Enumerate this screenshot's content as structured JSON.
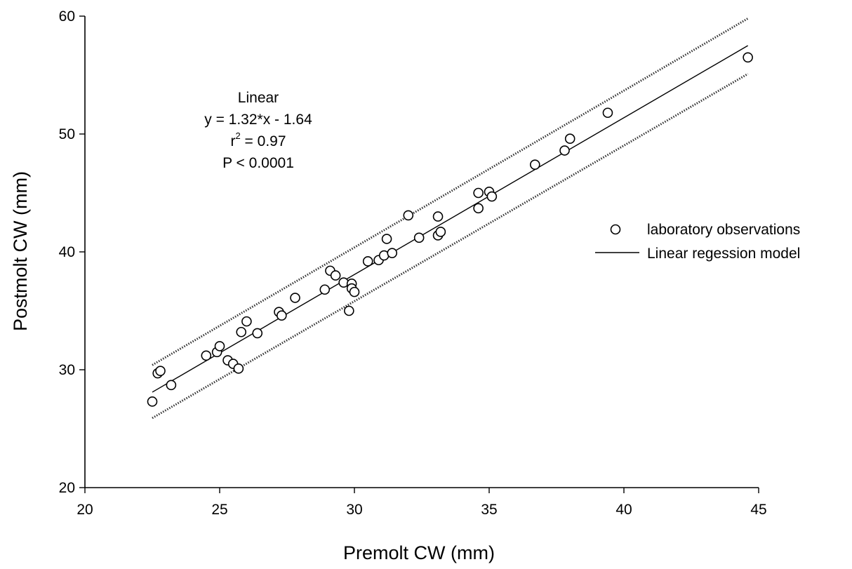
{
  "chart_data": {
    "type": "scatter",
    "xlabel": "Premolt CW (mm)",
    "ylabel": "Postmolt CW (mm)",
    "xlim": [
      20,
      45
    ],
    "ylim": [
      20,
      60
    ],
    "xticks": [
      "20",
      "25",
      "30",
      "35",
      "40",
      "45"
    ],
    "yticks": [
      "20",
      "30",
      "40",
      "50",
      "60"
    ],
    "grid": false,
    "legend_position": "right",
    "annotation": {
      "line1": "Linear",
      "line2": "y = 1.32*x - 1.64",
      "line3_base": "r",
      "line3_sup": "2",
      "line3_rest": " = 0.97",
      "line4": "P < 0.0001"
    },
    "series": [
      {
        "name": "laboratory observations",
        "kind": "scatter",
        "points": [
          [
            22.5,
            27.3
          ],
          [
            22.7,
            29.7
          ],
          [
            22.8,
            29.9
          ],
          [
            23.2,
            28.7
          ],
          [
            24.5,
            31.2
          ],
          [
            24.9,
            31.5
          ],
          [
            25.0,
            32.0
          ],
          [
            25.3,
            30.8
          ],
          [
            25.5,
            30.5
          ],
          [
            25.7,
            30.1
          ],
          [
            25.8,
            33.2
          ],
          [
            26.0,
            34.1
          ],
          [
            26.4,
            33.1
          ],
          [
            27.2,
            34.9
          ],
          [
            27.3,
            34.6
          ],
          [
            27.8,
            36.1
          ],
          [
            28.9,
            36.8
          ],
          [
            29.1,
            38.4
          ],
          [
            29.3,
            38.0
          ],
          [
            29.6,
            37.4
          ],
          [
            29.8,
            35.0
          ],
          [
            29.9,
            37.3
          ],
          [
            29.9,
            36.9
          ],
          [
            30.0,
            36.6
          ],
          [
            30.5,
            39.2
          ],
          [
            30.9,
            39.3
          ],
          [
            31.1,
            39.7
          ],
          [
            31.2,
            41.1
          ],
          [
            31.4,
            39.9
          ],
          [
            32.0,
            43.1
          ],
          [
            32.4,
            41.2
          ],
          [
            33.1,
            43.0
          ],
          [
            33.1,
            41.4
          ],
          [
            33.2,
            41.7
          ],
          [
            34.6,
            43.7
          ],
          [
            34.6,
            45.0
          ],
          [
            35.0,
            45.1
          ],
          [
            35.1,
            44.7
          ],
          [
            36.7,
            47.4
          ],
          [
            37.8,
            48.6
          ],
          [
            38.0,
            49.6
          ],
          [
            39.4,
            51.8
          ],
          [
            44.6,
            56.5
          ]
        ]
      },
      {
        "name": "Linear regession model",
        "kind": "line",
        "style": "solid",
        "points": [
          [
            22.5,
            28.1
          ],
          [
            44.6,
            57.5
          ]
        ]
      },
      {
        "kind": "line",
        "style": "dotted",
        "points": [
          [
            22.5,
            30.4
          ],
          [
            44.6,
            59.8
          ]
        ]
      },
      {
        "kind": "line",
        "style": "dotted",
        "points": [
          [
            22.5,
            25.9
          ],
          [
            44.6,
            55.1
          ]
        ]
      }
    ]
  }
}
